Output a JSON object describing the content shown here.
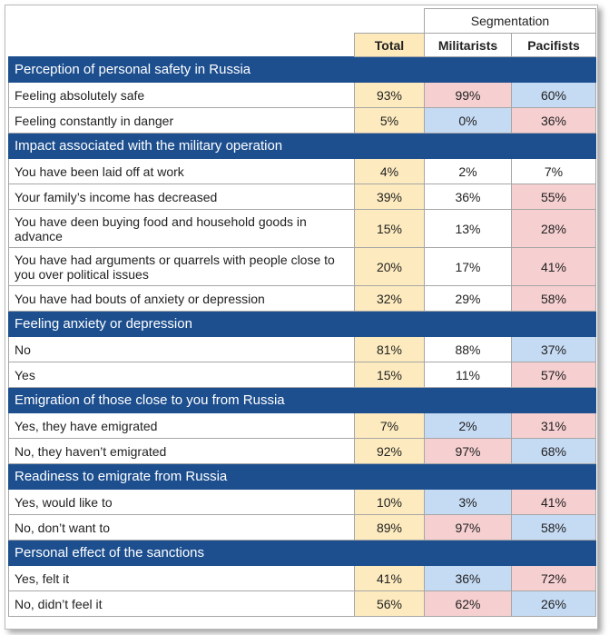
{
  "header": {
    "segmentation": "Segmentation",
    "total": "Total",
    "militarists": "Militarists",
    "pacifists": "Pacifists"
  },
  "colors": {
    "section_bg": "#1d4f8f",
    "total_bg": "#fdebbf",
    "pink": "#f6cfd0",
    "blue": "#c5daf3"
  },
  "sections": [
    {
      "title": "Perception of personal safety in Russia",
      "rows": [
        {
          "label": "Feeling absolutely safe",
          "total": "93%",
          "militarists": "99%",
          "pacifists": "60%",
          "m_color": "pink",
          "p_color": "blue"
        },
        {
          "label": "Feeling constantly in danger",
          "total": "5%",
          "militarists": "0%",
          "pacifists": "36%",
          "m_color": "blue",
          "p_color": "pink"
        }
      ]
    },
    {
      "title": "Impact associated with the military operation",
      "rows": [
        {
          "label": "You have been laid off at work",
          "total": "4%",
          "militarists": "2%",
          "pacifists": "7%",
          "m_color": "white",
          "p_color": "white"
        },
        {
          "label": "Your family’s income has decreased",
          "total": "39%",
          "militarists": "36%",
          "pacifists": "55%",
          "m_color": "white",
          "p_color": "pink"
        },
        {
          "label": "You have deen buying food and household goods in advance",
          "total": "15%",
          "militarists": "13%",
          "pacifists": "28%",
          "m_color": "white",
          "p_color": "pink"
        },
        {
          "label": "You have had arguments or quarrels with people close to you over political issues",
          "total": "20%",
          "militarists": "17%",
          "pacifists": "41%",
          "m_color": "white",
          "p_color": "pink"
        },
        {
          "label": "You have had bouts of anxiety or depression",
          "total": "32%",
          "militarists": "29%",
          "pacifists": "58%",
          "m_color": "white",
          "p_color": "pink"
        }
      ]
    },
    {
      "title": "Feeling anxiety or depression",
      "rows": [
        {
          "label": "No",
          "total": "81%",
          "militarists": "88%",
          "pacifists": "37%",
          "m_color": "white",
          "p_color": "blue"
        },
        {
          "label": "Yes",
          "total": "15%",
          "militarists": "11%",
          "pacifists": "57%",
          "m_color": "white",
          "p_color": "pink"
        }
      ]
    },
    {
      "title": "Emigration of those close to you from Russia",
      "rows": [
        {
          "label": "Yes, they have emigrated",
          "total": "7%",
          "militarists": "2%",
          "pacifists": "31%",
          "m_color": "blue",
          "p_color": "pink"
        },
        {
          "label": "No, they haven’t emigrated",
          "total": "92%",
          "militarists": "97%",
          "pacifists": "68%",
          "m_color": "pink",
          "p_color": "blue"
        }
      ]
    },
    {
      "title": "Readiness to emigrate from Russia",
      "rows": [
        {
          "label": "Yes, would like to",
          "total": "10%",
          "militarists": "3%",
          "pacifists": "41%",
          "m_color": "blue",
          "p_color": "pink"
        },
        {
          "label": "No, don’t want to",
          "total": "89%",
          "militarists": "97%",
          "pacifists": "58%",
          "m_color": "pink",
          "p_color": "blue"
        }
      ]
    },
    {
      "title": "Personal effect of the sanctions",
      "rows": [
        {
          "label": "Yes, felt it",
          "total": "41%",
          "militarists": "36%",
          "pacifists": "72%",
          "m_color": "blue",
          "p_color": "pink"
        },
        {
          "label": "No, didn’t feel it",
          "total": "56%",
          "militarists": "62%",
          "pacifists": "26%",
          "m_color": "pink",
          "p_color": "blue"
        }
      ]
    }
  ]
}
